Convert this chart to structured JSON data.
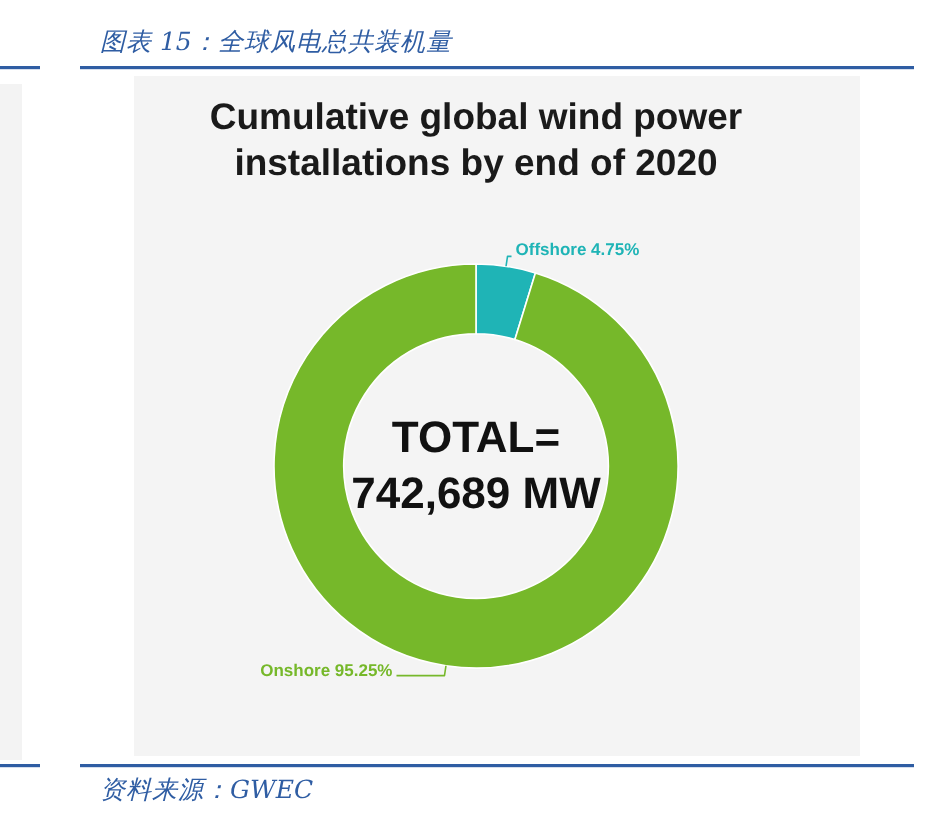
{
  "chart_data": {
    "type": "donut",
    "title": "Cumulative global wind power installations by end of 2020",
    "categories": [
      "Offshore",
      "Onshore"
    ],
    "values": [
      4.75,
      95.25
    ],
    "colors": [
      "#1fb4b6",
      "#76b82a"
    ],
    "value_labels": [
      "4.75%",
      "95.25%"
    ],
    "annotations": [
      "图表 15：全球风电总共装机量",
      "TOTAL= 742,689 MW",
      "资料来源：GWEC"
    ]
  }
}
